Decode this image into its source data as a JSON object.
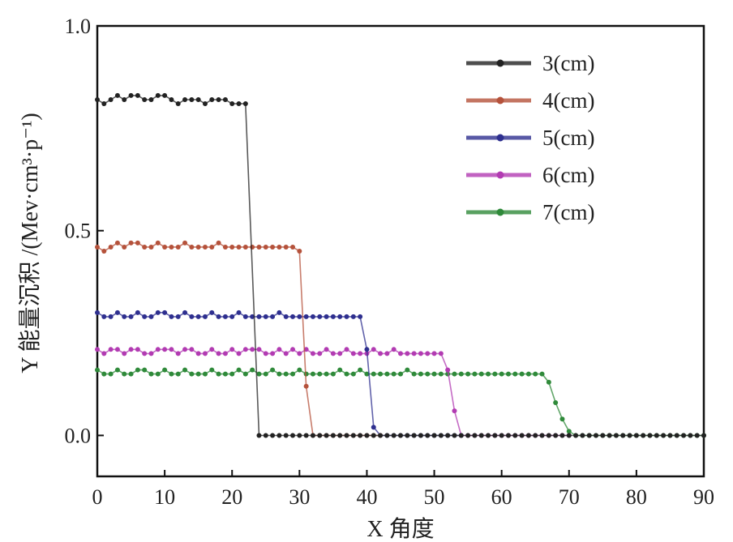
{
  "chart_data": {
    "type": "line",
    "xlabel": "X 角度",
    "ylabel": "Y 能量沉积 /(Mev·cm³·p⁻¹)",
    "xlim": [
      0,
      90
    ],
    "ylim": [
      -0.1,
      1.0
    ],
    "xticks": [
      0,
      10,
      20,
      30,
      40,
      50,
      60,
      70,
      80,
      90
    ],
    "xtick_labels": [
      "0",
      "10",
      "20",
      "30",
      "40",
      "50",
      "60",
      "70",
      "80",
      "90"
    ],
    "yticks": [
      0.0,
      0.5,
      1.0
    ],
    "ytick_labels": [
      "0.0",
      "0.5",
      "1.0"
    ],
    "grid": false,
    "legend_position": "top-right",
    "series": [
      {
        "name": "3(cm)",
        "color": "#222222",
        "x": [
          0,
          1,
          2,
          3,
          4,
          5,
          6,
          7,
          8,
          9,
          10,
          11,
          12,
          13,
          14,
          15,
          16,
          17,
          18,
          19,
          20,
          21,
          22,
          24,
          25,
          26,
          27,
          28,
          29,
          30,
          31,
          32,
          33,
          34,
          35,
          36,
          37,
          38,
          39,
          40,
          41,
          42,
          43,
          44,
          45,
          46,
          47,
          48,
          49,
          50,
          51,
          52,
          53,
          54,
          55,
          56,
          57,
          58,
          59,
          60,
          61,
          62,
          63,
          64,
          65,
          66,
          67,
          68,
          69,
          70,
          71,
          72,
          73,
          74,
          75,
          76,
          77,
          78,
          79,
          80,
          81,
          82,
          83,
          84,
          85,
          86,
          87,
          88,
          89,
          90
        ],
        "y": [
          0.82,
          0.81,
          0.82,
          0.83,
          0.82,
          0.83,
          0.83,
          0.82,
          0.82,
          0.83,
          0.83,
          0.82,
          0.81,
          0.82,
          0.82,
          0.82,
          0.81,
          0.82,
          0.82,
          0.82,
          0.81,
          0.81,
          0.81,
          0.0,
          0.0,
          0.0,
          0.0,
          0.0,
          0.0,
          0.0,
          0.0,
          0.0,
          0.0,
          0.0,
          0.0,
          0.0,
          0.0,
          0.0,
          0.0,
          0.0,
          0.0,
          0.0,
          0.0,
          0.0,
          0.0,
          0.0,
          0.0,
          0.0,
          0.0,
          0.0,
          0.0,
          0.0,
          0.0,
          0.0,
          0.0,
          0.0,
          0.0,
          0.0,
          0.0,
          0.0,
          0.0,
          0.0,
          0.0,
          0.0,
          0.0,
          0.0,
          0.0,
          0.0,
          0.0,
          0.0,
          0.0,
          0.0,
          0.0,
          0.0,
          0.0,
          0.0,
          0.0,
          0.0,
          0.0,
          0.0,
          0.0,
          0.0,
          0.0,
          0.0,
          0.0,
          0.0,
          0.0,
          0.0,
          0.0,
          0.0
        ]
      },
      {
        "name": "4(cm)",
        "color": "#b5523b",
        "x": [
          0,
          1,
          2,
          3,
          4,
          5,
          6,
          7,
          8,
          9,
          10,
          11,
          12,
          13,
          14,
          15,
          16,
          17,
          18,
          19,
          20,
          21,
          22,
          23,
          24,
          25,
          26,
          27,
          28,
          29,
          30,
          31,
          32,
          33,
          34,
          35,
          36,
          37,
          38,
          39,
          40,
          41,
          42
        ],
        "y": [
          0.46,
          0.45,
          0.46,
          0.47,
          0.46,
          0.47,
          0.47,
          0.46,
          0.46,
          0.47,
          0.46,
          0.46,
          0.46,
          0.47,
          0.46,
          0.46,
          0.46,
          0.46,
          0.47,
          0.46,
          0.46,
          0.46,
          0.46,
          0.46,
          0.46,
          0.46,
          0.46,
          0.46,
          0.46,
          0.46,
          0.45,
          0.12,
          0.0,
          0.0,
          0.0,
          0.0,
          0.0,
          0.0,
          0.0,
          0.0,
          0.0,
          0.0,
          0.0
        ]
      },
      {
        "name": "5(cm)",
        "color": "#2e2f8f",
        "x": [
          0,
          1,
          2,
          3,
          4,
          5,
          6,
          7,
          8,
          9,
          10,
          11,
          12,
          13,
          14,
          15,
          16,
          17,
          18,
          19,
          20,
          21,
          22,
          23,
          24,
          25,
          26,
          27,
          28,
          29,
          30,
          31,
          32,
          33,
          34,
          35,
          36,
          37,
          38,
          39,
          40,
          41,
          42,
          43,
          44,
          45,
          46,
          47,
          48,
          49,
          50,
          51,
          52,
          53,
          54
        ],
        "y": [
          0.3,
          0.29,
          0.29,
          0.3,
          0.29,
          0.29,
          0.3,
          0.29,
          0.29,
          0.3,
          0.3,
          0.29,
          0.29,
          0.3,
          0.29,
          0.29,
          0.29,
          0.3,
          0.29,
          0.29,
          0.29,
          0.3,
          0.29,
          0.29,
          0.29,
          0.29,
          0.29,
          0.3,
          0.29,
          0.29,
          0.29,
          0.29,
          0.29,
          0.29,
          0.29,
          0.29,
          0.29,
          0.29,
          0.29,
          0.29,
          0.21,
          0.02,
          0.0,
          0.0,
          0.0,
          0.0,
          0.0,
          0.0,
          0.0,
          0.0,
          0.0,
          0.0,
          0.0,
          0.0,
          0.0
        ]
      },
      {
        "name": "6(cm)",
        "color": "#b23bb2",
        "x": [
          0,
          1,
          2,
          3,
          4,
          5,
          6,
          7,
          8,
          9,
          10,
          11,
          12,
          13,
          14,
          15,
          16,
          17,
          18,
          19,
          20,
          21,
          22,
          23,
          24,
          25,
          26,
          27,
          28,
          29,
          30,
          31,
          32,
          33,
          34,
          35,
          36,
          37,
          38,
          39,
          40,
          41,
          42,
          43,
          44,
          45,
          46,
          47,
          48,
          49,
          50,
          51,
          52,
          53,
          54,
          55,
          56,
          57,
          58,
          59,
          60,
          61,
          62,
          63,
          64,
          65,
          66,
          67,
          68,
          69,
          70
        ],
        "y": [
          0.21,
          0.2,
          0.21,
          0.21,
          0.2,
          0.21,
          0.21,
          0.2,
          0.2,
          0.21,
          0.21,
          0.21,
          0.2,
          0.21,
          0.21,
          0.2,
          0.2,
          0.21,
          0.2,
          0.2,
          0.21,
          0.2,
          0.21,
          0.21,
          0.21,
          0.2,
          0.2,
          0.21,
          0.2,
          0.21,
          0.2,
          0.21,
          0.2,
          0.2,
          0.21,
          0.2,
          0.2,
          0.21,
          0.2,
          0.2,
          0.2,
          0.21,
          0.2,
          0.2,
          0.21,
          0.2,
          0.2,
          0.2,
          0.2,
          0.2,
          0.2,
          0.2,
          0.16,
          0.06,
          0.0,
          0.0,
          0.0,
          0.0,
          0.0,
          0.0,
          0.0,
          0.0,
          0.0,
          0.0,
          0.0,
          0.0,
          0.0,
          0.0,
          0.0,
          0.0,
          0.0
        ]
      },
      {
        "name": "7(cm)",
        "color": "#2f8a3a",
        "x": [
          0,
          1,
          2,
          3,
          4,
          5,
          6,
          7,
          8,
          9,
          10,
          11,
          12,
          13,
          14,
          15,
          16,
          17,
          18,
          19,
          20,
          21,
          22,
          23,
          24,
          25,
          26,
          27,
          28,
          29,
          30,
          31,
          32,
          33,
          34,
          35,
          36,
          37,
          38,
          39,
          40,
          41,
          42,
          43,
          44,
          45,
          46,
          47,
          48,
          49,
          50,
          51,
          52,
          53,
          54,
          55,
          56,
          57,
          58,
          59,
          60,
          61,
          62,
          63,
          64,
          65,
          66,
          67,
          68,
          69,
          70,
          71,
          72,
          73,
          74,
          75,
          76,
          77,
          78,
          79,
          80,
          81,
          82,
          83,
          84,
          85,
          86,
          87,
          88,
          89,
          90
        ],
        "y": [
          0.16,
          0.15,
          0.15,
          0.16,
          0.15,
          0.15,
          0.16,
          0.16,
          0.15,
          0.15,
          0.16,
          0.15,
          0.15,
          0.16,
          0.15,
          0.15,
          0.15,
          0.16,
          0.15,
          0.15,
          0.15,
          0.16,
          0.15,
          0.16,
          0.15,
          0.15,
          0.16,
          0.15,
          0.15,
          0.15,
          0.16,
          0.15,
          0.15,
          0.15,
          0.15,
          0.15,
          0.16,
          0.15,
          0.15,
          0.16,
          0.15,
          0.15,
          0.15,
          0.15,
          0.15,
          0.15,
          0.16,
          0.15,
          0.15,
          0.15,
          0.15,
          0.15,
          0.15,
          0.15,
          0.15,
          0.15,
          0.15,
          0.15,
          0.15,
          0.15,
          0.15,
          0.15,
          0.15,
          0.15,
          0.15,
          0.15,
          0.15,
          0.13,
          0.08,
          0.04,
          0.01,
          0.0,
          0.0,
          0.0,
          0.0,
          0.0,
          0.0,
          0.0,
          0.0,
          0.0,
          0.0,
          0.0,
          0.0,
          0.0,
          0.0,
          0.0,
          0.0,
          0.0,
          0.0,
          0.0,
          0.0
        ]
      }
    ]
  }
}
